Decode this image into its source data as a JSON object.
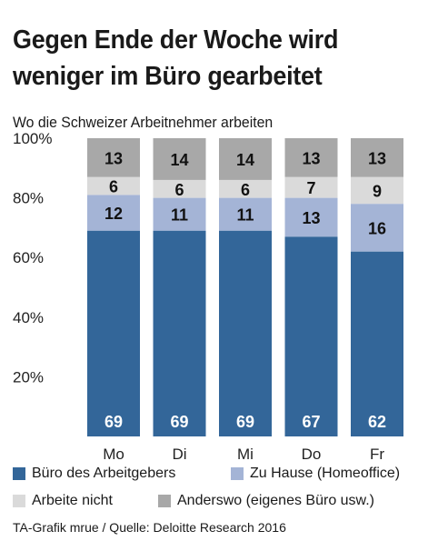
{
  "title": "Gegen Ende der Woche wird weniger im Büro gearbeitet",
  "subtitle": "Wo die Schweizer Arbeitnehmer arbeiten",
  "source": "TA-Grafik mrue / Quelle: Deloitte Research 2016",
  "colors": {
    "buero": "#336699",
    "zuhause": "#a4b4d6",
    "nicht": "#dadada",
    "anderswo": "#a8a8a8"
  },
  "chart_data": {
    "type": "bar",
    "stacked": true,
    "categories": [
      "Mo",
      "Di",
      "Mi",
      "Do",
      "Fr"
    ],
    "series": [
      {
        "name": "Büro des Arbeitgebers",
        "color": "#336699",
        "values": [
          69,
          69,
          69,
          67,
          62
        ]
      },
      {
        "name": "Zu Hause (Homeoffice)",
        "color": "#a4b4d6",
        "values": [
          12,
          11,
          11,
          13,
          16
        ]
      },
      {
        "name": "Arbeite nicht",
        "color": "#dadada",
        "values": [
          6,
          6,
          6,
          7,
          9
        ]
      },
      {
        "name": "Anderswo (eigenes Büro usw.)",
        "color": "#a8a8a8",
        "values": [
          13,
          14,
          14,
          13,
          13
        ]
      }
    ],
    "yticks": [
      "20%",
      "40%",
      "60%",
      "80%",
      "100%"
    ],
    "ylim": [
      0,
      100
    ],
    "grid": false,
    "legend": "bottom"
  }
}
